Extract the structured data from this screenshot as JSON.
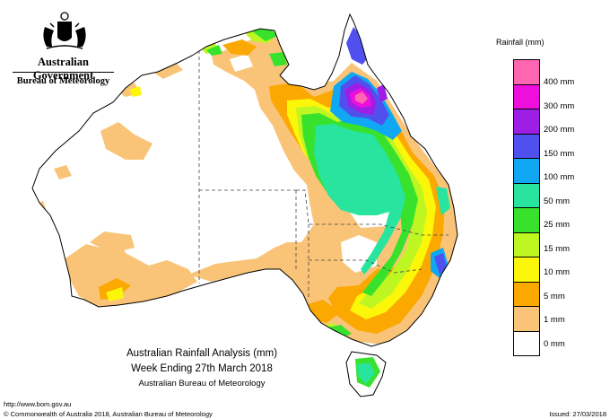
{
  "branding": {
    "government": "Australian Government",
    "bureau": "Bureau of Meteorology",
    "crest_icon": "coat-of-arms-icon"
  },
  "legend": {
    "title": "Rainfall (mm)",
    "items": [
      {
        "label": "400 mm",
        "color": "#ff66b2"
      },
      {
        "label": "300 mm",
        "color": "#ee0fdd"
      },
      {
        "label": "200 mm",
        "color": "#9e1ee6"
      },
      {
        "label": "150 mm",
        "color": "#5050ee"
      },
      {
        "label": "100 mm",
        "color": "#10a8f2"
      },
      {
        "label": "50 mm",
        "color": "#28e49e"
      },
      {
        "label": "25 mm",
        "color": "#38e22c"
      },
      {
        "label": "15 mm",
        "color": "#bef622"
      },
      {
        "label": "10 mm",
        "color": "#fcf60a"
      },
      {
        "label": "5 mm",
        "color": "#fba800"
      },
      {
        "label": "1 mm",
        "color": "#f9c477"
      },
      {
        "label": "0 mm",
        "color": "#ffffff"
      }
    ]
  },
  "caption": {
    "line1": "Australian Rainfall Analysis (mm)",
    "line2": "Week Ending 27th March 2018",
    "line3": "Australian Bureau of Meteorology"
  },
  "footer": {
    "url": "http://www.bom.gov.au",
    "copyright": "© Commonwealth of Australia 2018, Australian Bureau of Meteorology",
    "issued": "Issued: 27/03/2018"
  }
}
